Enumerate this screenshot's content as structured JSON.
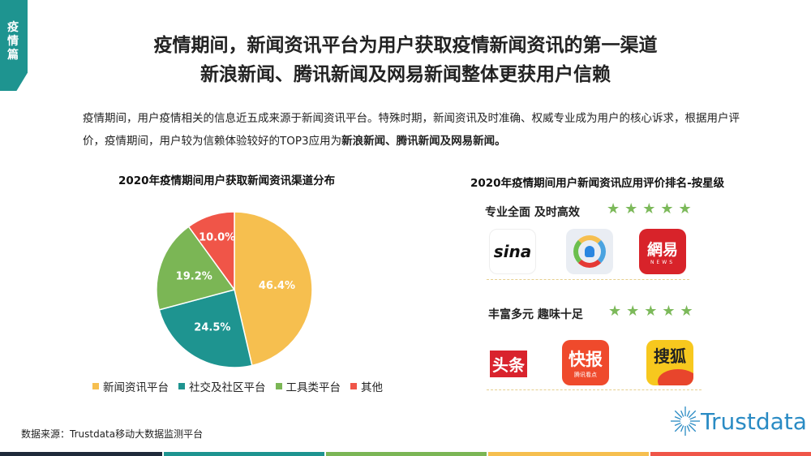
{
  "section_tag": "疫情篇",
  "title_line1": "疫情期间，新闻资讯平台为用户获取疫情新闻资讯的第一渠道",
  "title_line2": "新浪新闻、腾讯新闻及网易新闻整体更获用户信赖",
  "intro_text": "疫情期间，用户疫情相关的信息近五成来源于新闻资讯平台。特殊时期，新闻资讯及时准确、权威专业成为用户的核心诉求，根据用户评价，疫情期间，用户较为信赖体验较好的TOP3应用为",
  "intro_bold": "新浪新闻、腾讯新闻及网易新闻。",
  "chart_data": {
    "type": "pie",
    "title": "2020年疫情期间用户获取新闻资讯渠道分布",
    "categories": [
      "新闻资讯平台",
      "社交及社区平台",
      "工具类平台",
      "其他"
    ],
    "values": [
      46.4,
      24.5,
      19.2,
      10.0
    ],
    "labels": [
      "46.4%",
      "24.5%",
      "19.2%",
      "10.0%"
    ],
    "colors": [
      "#f6bf4f",
      "#1e9490",
      "#7bb655",
      "#f05548"
    ],
    "start": "top",
    "direction": "clockwise",
    "legend": "bottom"
  },
  "ranking": {
    "title": "2020年疫情期间用户新闻资讯应用评价排名-按星级",
    "groups": [
      {
        "label": "专业全面 及时高效",
        "stars": 5,
        "star_text": "★★★★★",
        "apps": [
          {
            "name": "sina",
            "text": "sina"
          },
          {
            "name": "tencent-news",
            "text": ""
          },
          {
            "name": "netease-news",
            "text": "網易",
            "sub": "NEWS"
          }
        ]
      },
      {
        "label": "丰富多元 趣味十足",
        "stars": 5,
        "star_text": "★★★★★",
        "apps": [
          {
            "name": "toutiao",
            "text": "头条"
          },
          {
            "name": "kuaibao",
            "text": "快报",
            "sub": "腾讯看点"
          },
          {
            "name": "sohu",
            "text": "搜狐"
          }
        ]
      }
    ]
  },
  "source": "数据来源：Trustdata移动大数据监测平台",
  "brand": "Trustdata",
  "bottom_colors": [
    "#1f2a3a",
    "#1e9490",
    "#7bb655",
    "#f6bf4f",
    "#f05548"
  ]
}
